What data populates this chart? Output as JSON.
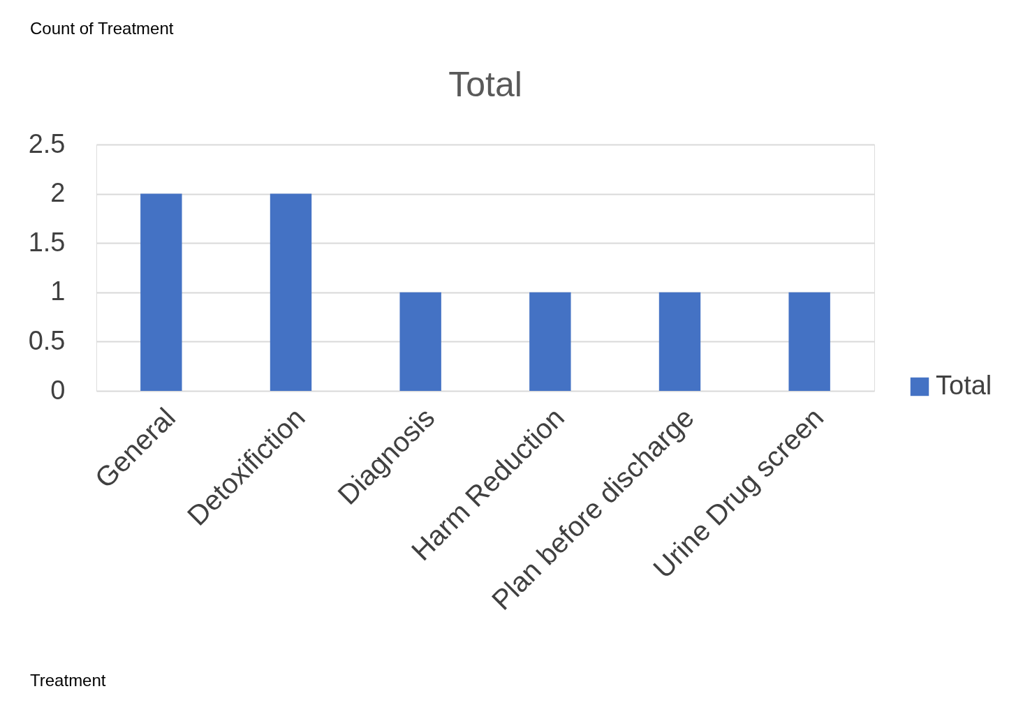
{
  "chart_data": {
    "type": "bar",
    "title": "Total",
    "categories": [
      "General",
      "Detoxifiction",
      "Diagnosis",
      "Harm Reduction",
      "Plan before discharge",
      "Urine Drug screen"
    ],
    "series": [
      {
        "name": "Total",
        "color": "#4472c4",
        "values": [
          2,
          2,
          1,
          1,
          1,
          1
        ]
      }
    ],
    "ylim": [
      0,
      2.5
    ],
    "yticks": [
      0,
      0.5,
      1,
      1.5,
      2,
      2.5
    ],
    "grid": "y",
    "legend": "right",
    "annotations": [
      "Count of Treatment",
      "Treatment"
    ]
  }
}
